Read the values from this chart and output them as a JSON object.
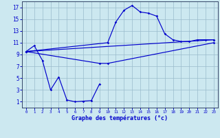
{
  "bg_color": "#cce8f0",
  "line_color": "#0000cc",
  "grid_color": "#99bbcc",
  "xlabel": "Graphe des températures (°c)",
  "xlim": [
    -0.5,
    23.5
  ],
  "ylim": [
    0.0,
    18.0
  ],
  "x_ticks": [
    0,
    1,
    2,
    3,
    4,
    5,
    6,
    7,
    8,
    9,
    10,
    11,
    12,
    13,
    14,
    15,
    16,
    17,
    18,
    19,
    20,
    21,
    22,
    23
  ],
  "y_ticks": [
    1,
    3,
    5,
    7,
    9,
    11,
    13,
    15,
    17
  ],
  "curves": [
    {
      "x": [
        0,
        1,
        2,
        3,
        4,
        5,
        6,
        7,
        8,
        9
      ],
      "y": [
        9.5,
        10.5,
        8.0,
        3.0,
        5.2,
        1.3,
        1.0,
        1.1,
        1.2,
        4.0
      ]
    },
    {
      "x": [
        0,
        10,
        11,
        12,
        13,
        14,
        15,
        16,
        17,
        18,
        19,
        20,
        21,
        22,
        23
      ],
      "y": [
        9.5,
        11.0,
        14.5,
        16.5,
        17.3,
        16.2,
        16.0,
        15.5,
        12.5,
        11.5,
        11.2,
        11.2,
        11.5,
        11.5,
        11.5
      ]
    },
    {
      "x": [
        0,
        23
      ],
      "y": [
        9.5,
        11.5
      ]
    },
    {
      "x": [
        0,
        9,
        10,
        23
      ],
      "y": [
        9.5,
        7.5,
        7.5,
        11.0
      ]
    }
  ]
}
